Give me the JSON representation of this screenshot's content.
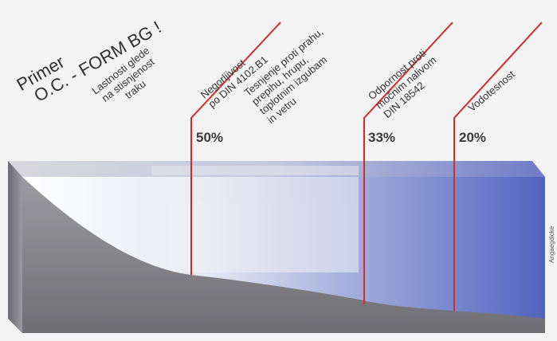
{
  "title_lines": [
    "Primer",
    "O.C. - FORM BG !"
  ],
  "header_label_lines": [
    "Lastnosti glede",
    "na stisnjenost",
    "traku"
  ],
  "columns": [
    {
      "lines": [
        "Negorljivost",
        "po DIN 4102.B1"
      ],
      "percent": "50%"
    },
    {
      "lines": [
        "Tesnjenje proti prahu,",
        "prepihu, hrupu,",
        "toplotnim izgubam",
        "in vetru"
      ],
      "percent": ""
    },
    {
      "lines": [
        "Odpornost proti",
        "močnim nalivom",
        "DIN 18542"
      ],
      "percent": "33%"
    },
    {
      "lines": [
        "Vodotesnost"
      ],
      "percent": "20%"
    }
  ],
  "side_label": "Angaegdicke",
  "colors": {
    "red_line": "#cf2b2b",
    "blue": "#5a6fc4",
    "grey": "#8a8a8e",
    "background": "#f3f3f3"
  }
}
